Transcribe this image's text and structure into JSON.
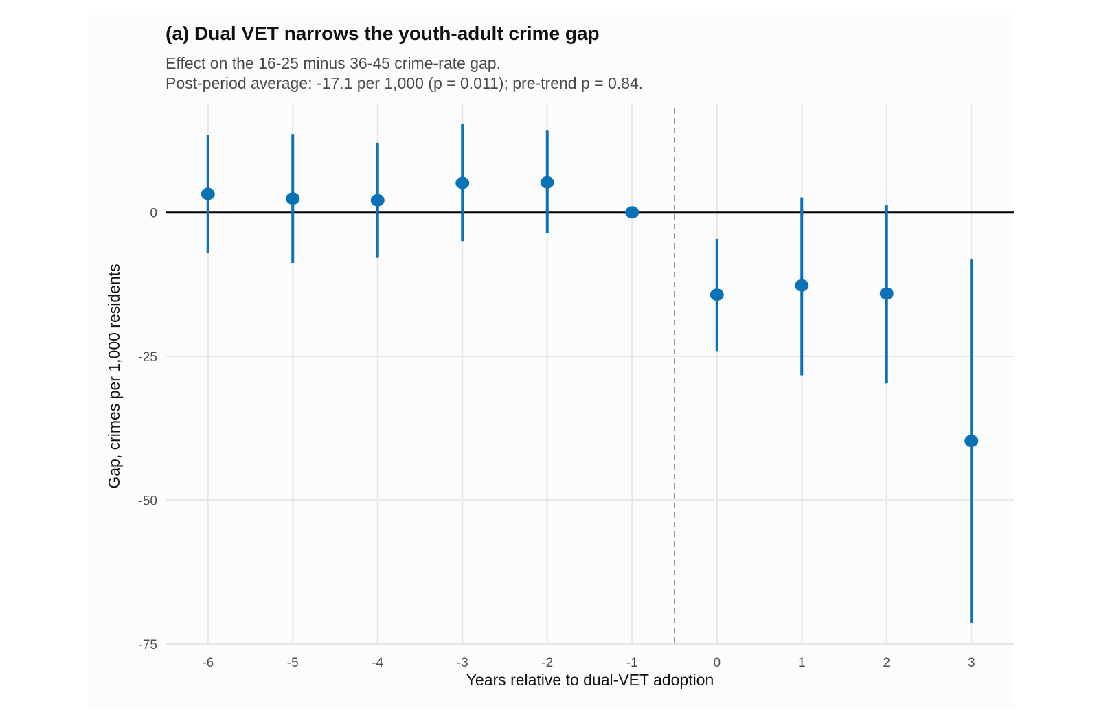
{
  "chart_data": {
    "type": "scatter",
    "title": "(a) Dual VET narrows the youth-adult crime gap",
    "subtitle": [
      "Effect on the 16-25 minus 36-45 crime-rate gap.",
      "Post-period average: -17.1 per 1,000 (p = 0.011); pre-trend p = 0.84."
    ],
    "xlabel": "Years relative to dual-VET adoption",
    "ylabel": "Gap, crimes per 1,000 residents",
    "x": [
      -6,
      -5,
      -4,
      -3,
      -2,
      -1,
      0,
      1,
      2,
      3
    ],
    "x_tick_labels": [
      "-6",
      "-5",
      "-4",
      "-3",
      "-2",
      "-1",
      "0",
      "1",
      "2",
      "3"
    ],
    "y_ticks": [
      0,
      -25,
      -50,
      -75
    ],
    "y_tick_labels": [
      "0",
      "-25",
      "-50",
      "-75"
    ],
    "xlim": [
      -6.5,
      3.5
    ],
    "ylim": [
      -75,
      19
    ],
    "series": [
      {
        "estimate": [
          3.2,
          2.4,
          2.1,
          5.1,
          5.2,
          0,
          -14.3,
          -12.7,
          -14.1,
          -39.7
        ],
        "ci_low": [
          -7.0,
          -8.8,
          -7.8,
          -5.0,
          -3.6,
          0,
          -24.1,
          -28.3,
          -29.7,
          -71.3
        ],
        "ci_high": [
          13.4,
          13.6,
          12.1,
          15.3,
          14.2,
          0,
          -4.6,
          2.6,
          1.3,
          -8.1
        ]
      }
    ],
    "reference_lines": {
      "horizontal_y": 0,
      "vertical_dashed_x": -0.5
    },
    "colors": {
      "points": "#0a72b5",
      "zero_line": "#000000",
      "dashed_line": "#999999",
      "grid": "#e6e6e6"
    },
    "grid": true,
    "legend": "none"
  }
}
